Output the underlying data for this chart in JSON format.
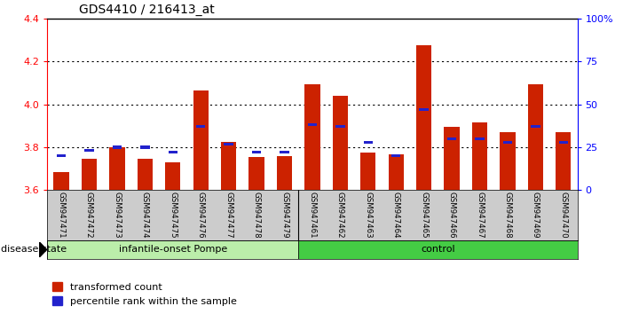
{
  "title": "GDS4410 / 216413_at",
  "samples": [
    "GSM947471",
    "GSM947472",
    "GSM947473",
    "GSM947474",
    "GSM947475",
    "GSM947476",
    "GSM947477",
    "GSM947478",
    "GSM947479",
    "GSM947461",
    "GSM947462",
    "GSM947463",
    "GSM947464",
    "GSM947465",
    "GSM947466",
    "GSM947467",
    "GSM947468",
    "GSM947469",
    "GSM947470"
  ],
  "red_values": [
    3.685,
    3.745,
    3.8,
    3.745,
    3.73,
    4.065,
    3.825,
    3.755,
    3.76,
    4.095,
    4.04,
    3.775,
    3.765,
    4.275,
    3.895,
    3.915,
    3.87,
    4.095,
    3.87
  ],
  "blue_pct": [
    20,
    23,
    25,
    25,
    22,
    37,
    27,
    22,
    22,
    38,
    37,
    28,
    20,
    47,
    30,
    30,
    28,
    37,
    28
  ],
  "ylim_left": [
    3.6,
    4.4
  ],
  "ylim_right": [
    0,
    100
  ],
  "yticks_left": [
    3.6,
    3.8,
    4.0,
    4.2,
    4.4
  ],
  "yticks_right": [
    0,
    25,
    50,
    75,
    100
  ],
  "ytick_labels_right": [
    "0",
    "25",
    "50",
    "75",
    "100%"
  ],
  "bar_color": "#cc2200",
  "blue_color": "#2222cc",
  "group1_label": "infantile-onset Pompe",
  "group2_label": "control",
  "group1_color": "#bbeeaa",
  "group2_color": "#44cc44",
  "disease_state_label": "disease state",
  "legend_red": "transformed count",
  "legend_blue": "percentile rank within the sample",
  "bar_width": 0.55,
  "n_group1": 9,
  "n_group2": 10
}
